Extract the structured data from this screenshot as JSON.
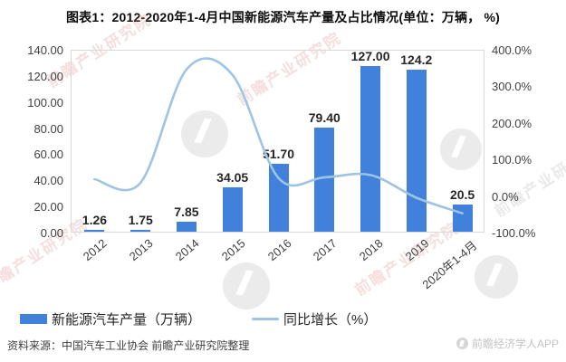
{
  "title": "图表1：2012-2020年1-4月中国新能源汽车产量及占比情况(单位：万辆， %)",
  "chart_data": {
    "type": "combo",
    "title": "2012-2020年1-4月中国新能源汽车产量及占比情况",
    "unit_note": "单位：万辆， %",
    "categories": [
      "2012",
      "2013",
      "2014",
      "2015",
      "2016",
      "2017",
      "2018",
      "2019",
      "2020年1-4月"
    ],
    "series": [
      {
        "name": "新能源汽车产量（万辆）",
        "type": "bar",
        "axis": "left",
        "values": [
          1.26,
          1.75,
          7.85,
          34.05,
          51.7,
          79.4,
          127.0,
          124.2,
          20.5
        ],
        "labels": [
          "1.26",
          "1.75",
          "7.85",
          "34.05",
          "51.70",
          "79.40",
          "127.00",
          "124.2",
          "20.5"
        ],
        "color": "#4181DB"
      },
      {
        "name": "同比增长（%）",
        "type": "line",
        "axis": "right",
        "values": [
          48.5,
          38.9,
          348.6,
          333.8,
          51.8,
          53.6,
          59.9,
          -2.2,
          -44.8
        ],
        "color": "#9DC3E6"
      }
    ],
    "axes": {
      "left": {
        "min": 0,
        "max": 140,
        "ticks": [
          "140.00",
          "120.00",
          "100.00",
          "80.00",
          "60.00",
          "40.00",
          "20.00",
          "0.00"
        ]
      },
      "right": {
        "min": -100,
        "max": 400,
        "ticks": [
          "400.0%",
          "300.0%",
          "200.0%",
          "100.0%",
          "0.0%",
          "-100.0%"
        ]
      }
    },
    "grid": false,
    "legend_position": "bottom"
  },
  "legend": {
    "bar_label": "新能源汽车产量（万辆）",
    "line_label": "同比增长（%）"
  },
  "source": "资料来源：中国汽车工业协会 前瞻产业研究院整理",
  "brand": {
    "app_label": "前瞻经济学人APP",
    "watermark_text": "前瞻产业研究院"
  },
  "colors": {
    "bar": "#4181DB",
    "line": "#9DC3E6",
    "axis_text": "#404040",
    "plot_border": "#D9D9D9",
    "watermark_pink": "#D98C8C",
    "brand_gray": "#C3C3C3"
  }
}
